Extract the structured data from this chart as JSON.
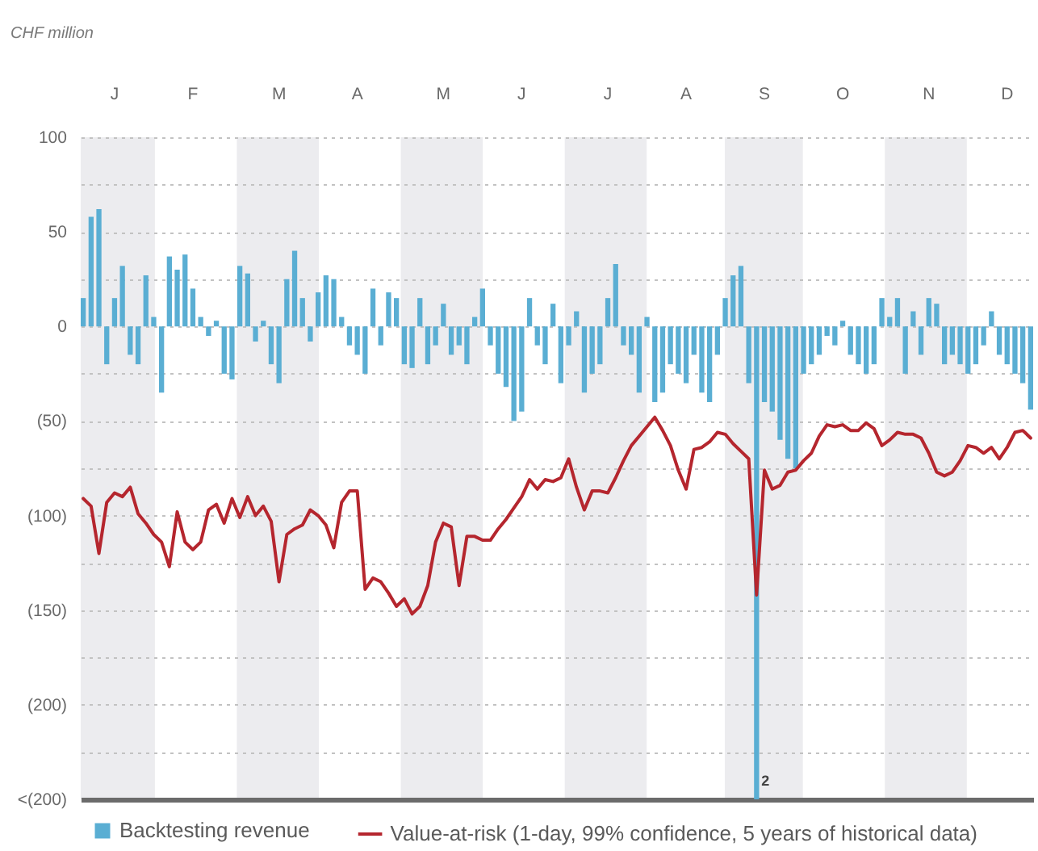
{
  "chart_data": {
    "type": "bar",
    "ylabel": "CHF million",
    "legend": "bottom",
    "grid": "y",
    "annotations": [
      {
        "text": "2",
        "y": -240
      }
    ],
    "categories": [
      null,
      null,
      null,
      null,
      "J",
      null,
      null,
      null,
      null,
      null,
      null,
      null,
      null,
      null,
      "F",
      null,
      null,
      null,
      null,
      null,
      null,
      null,
      null,
      null,
      null,
      "M",
      null,
      null,
      null,
      null,
      null,
      null,
      null,
      null,
      null,
      "A",
      null,
      null,
      null,
      null,
      null,
      null,
      null,
      null,
      null,
      null,
      "M",
      null,
      null,
      null,
      null,
      null,
      null,
      null,
      null,
      null,
      "J",
      null,
      null,
      null,
      null,
      null,
      null,
      null,
      null,
      null,
      null,
      "J",
      null,
      null,
      null,
      null,
      null,
      null,
      null,
      null,
      null,
      "A",
      null,
      null,
      null,
      null,
      null,
      null,
      null,
      null,
      null,
      "S",
      null,
      null,
      null,
      null,
      null,
      null,
      null,
      null,
      null,
      "O",
      null,
      null,
      null,
      null,
      null,
      null,
      null,
      null,
      null,
      null,
      "N",
      null,
      null,
      null,
      null,
      null,
      null,
      null,
      null,
      null,
      "D",
      null,
      null,
      null
    ],
    "ylim": [
      -250,
      100
    ],
    "yticks": [
      100,
      {
        "value": 75,
        "label": null
      },
      50,
      {
        "value": 25,
        "label": null
      },
      0,
      {
        "value": -25,
        "label": null
      },
      {
        "value": -50,
        "label": "(50)"
      },
      {
        "value": -75,
        "label": null
      },
      {
        "value": -100,
        "label": "(100)"
      },
      {
        "value": -125,
        "label": null
      },
      {
        "value": -150,
        "label": "(150)"
      },
      {
        "value": -175,
        "label": null
      },
      {
        "value": -200,
        "label": "(200)"
      },
      {
        "value": -225,
        "label": null
      },
      {
        "value": -250,
        "label": "<(200)"
      }
    ],
    "series": [
      {
        "name": "Backtesting revenue",
        "color": "#5aaed3",
        "values": [
          15,
          58,
          62,
          -20,
          15,
          32,
          -15,
          -20,
          27,
          5,
          -35,
          37,
          30,
          38,
          20,
          5,
          -5,
          3,
          -25,
          -28,
          32,
          28,
          -8,
          3,
          -20,
          -30,
          25,
          40,
          15,
          -8,
          18,
          27,
          25,
          5,
          -10,
          -15,
          -25,
          20,
          -10,
          18,
          15,
          -20,
          -22,
          15,
          -20,
          -10,
          12,
          -15,
          -10,
          -20,
          5,
          20,
          -10,
          -25,
          -32,
          -50,
          -45,
          15,
          -10,
          -20,
          12,
          -30,
          -10,
          8,
          -35,
          -25,
          -20,
          15,
          33,
          -10,
          -15,
          -35,
          5,
          -40,
          -35,
          -20,
          -25,
          -30,
          -15,
          -35,
          -40,
          -15,
          15,
          27,
          32,
          -30,
          -250,
          -40,
          -45,
          -60,
          -70,
          -75,
          -25,
          -20,
          -15,
          -5,
          -10,
          3,
          -15,
          -20,
          -25,
          -20,
          15,
          5,
          15,
          -25,
          8,
          -15,
          15,
          12,
          -20,
          -15,
          -20,
          -25,
          -20,
          -10,
          8,
          -15,
          -20,
          -25,
          -30,
          -44
        ]
      },
      {
        "name": "Value-at-risk (1-day, 99% confidence, 5 years of historical data)",
        "type": "line",
        "color": "#b5262e",
        "values": [
          -91,
          -95,
          -120,
          -93,
          -88,
          -90,
          -85,
          -99,
          -104,
          -110,
          -114,
          -127,
          -98,
          -114,
          -118,
          -114,
          -97,
          -94,
          -104,
          -91,
          -101,
          -90,
          -100,
          -95,
          -103,
          -135,
          -110,
          -107,
          -105,
          -97,
          -100,
          -105,
          -117,
          -93,
          -87,
          -87,
          -139,
          -133,
          -135,
          -141,
          -148,
          -144,
          -152,
          -148,
          -137,
          -114,
          -104,
          -106,
          -137,
          -111,
          -111,
          -113,
          -113,
          -107,
          -102,
          -96,
          -90,
          -81,
          -86,
          -81,
          -82,
          -80,
          -70,
          -85,
          -97,
          -87,
          -87,
          -88,
          -80,
          -71,
          -63,
          -58,
          -53,
          -48,
          -55,
          -63,
          -76,
          -86,
          -65,
          -64,
          -61,
          -56,
          -57,
          -62,
          -66,
          -70,
          -142,
          -76,
          -86,
          -84,
          -77,
          -76,
          -71,
          -67,
          -58,
          -52,
          -53,
          -52,
          -55,
          -55,
          -51,
          -54,
          -63,
          -60,
          -56,
          -57,
          -57,
          -59,
          -67,
          -77,
          -79,
          -77,
          -71,
          -63,
          -64,
          -67,
          -64,
          -70,
          -64,
          -56,
          -55,
          -59
        ]
      }
    ]
  }
}
